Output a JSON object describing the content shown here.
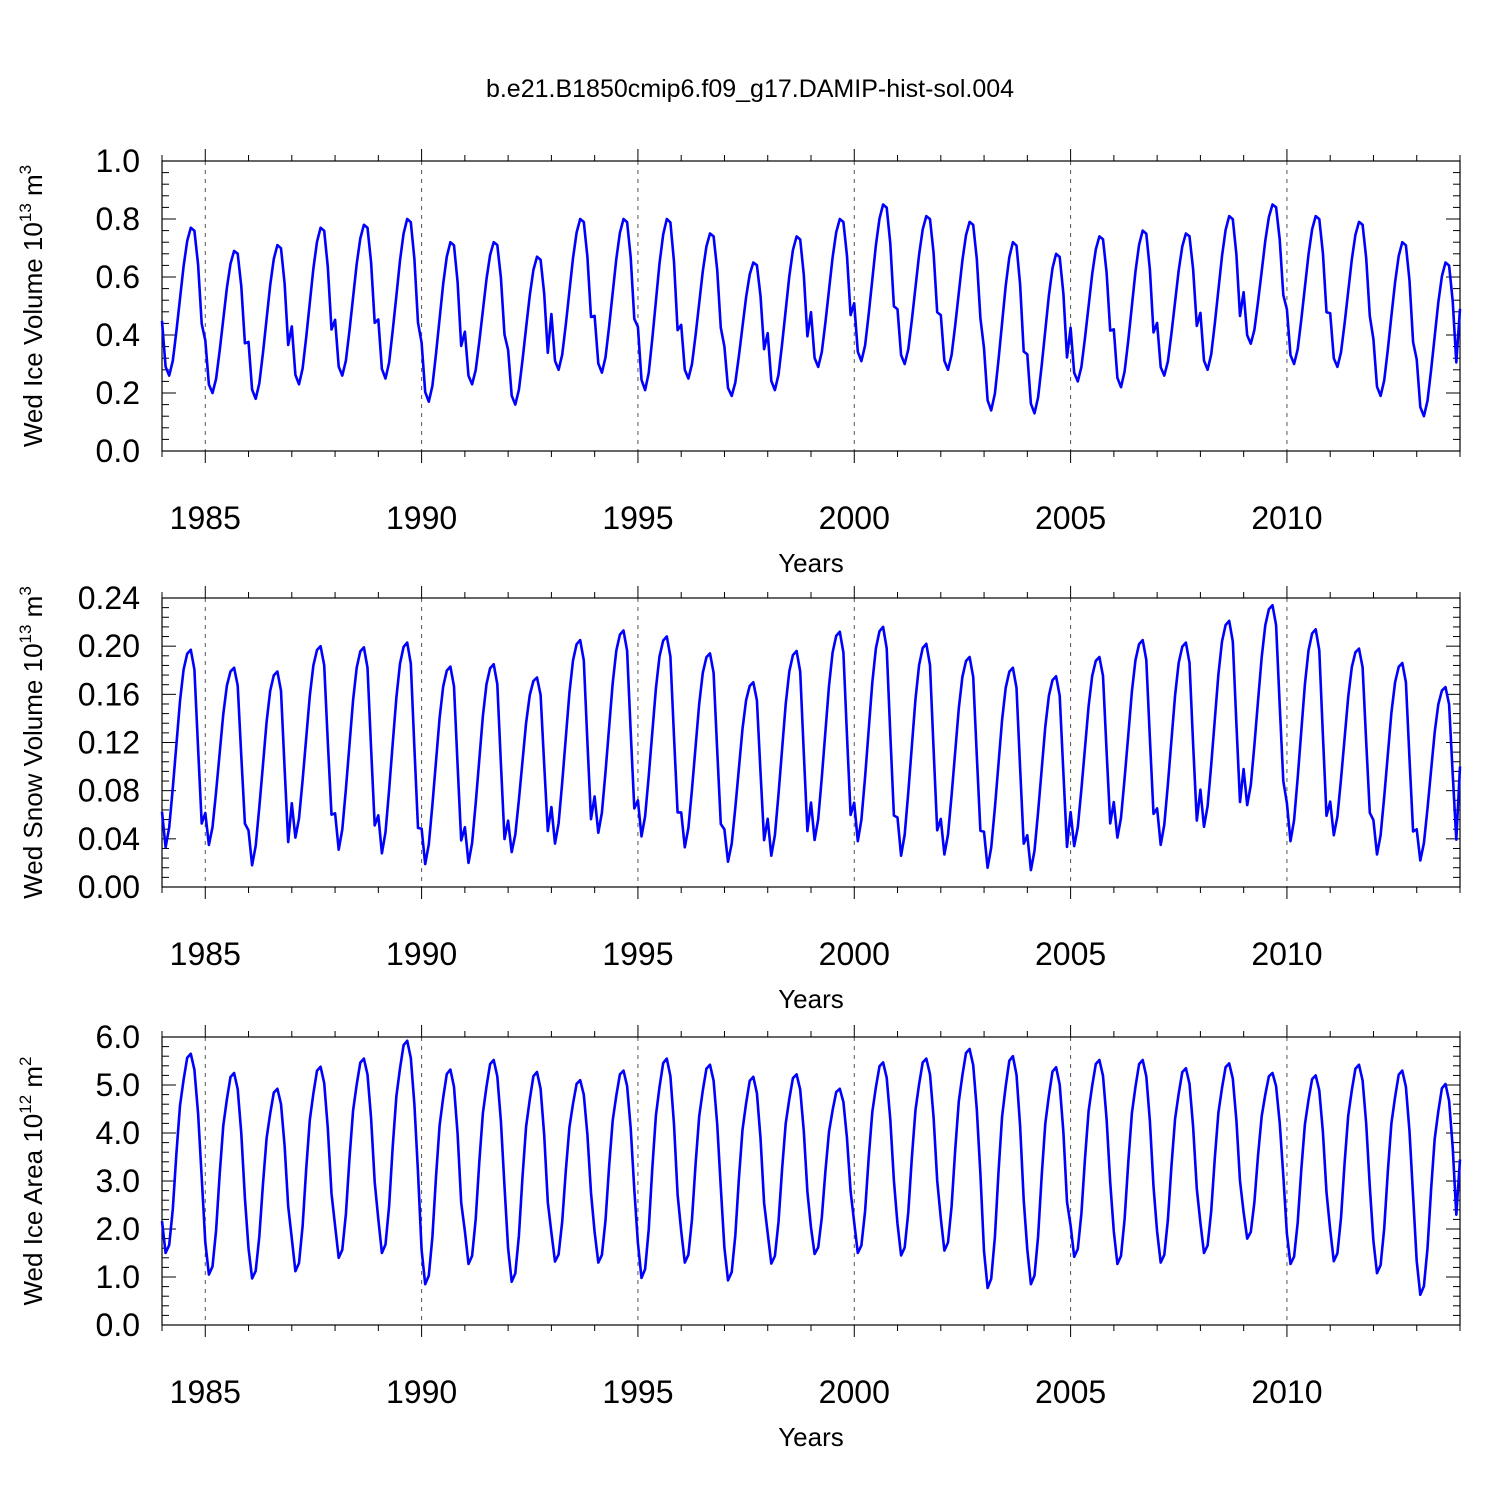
{
  "title": "b.e21.B1850cmip6.f09_g17.DAMIP-hist-sol.004",
  "line_color": "#0000ff",
  "chart_data": [
    {
      "type": "line",
      "title": "b.e21.B1850cmip6.f09_g17.DAMIP-hist-sol.004",
      "xlabel": "Years",
      "ylabel_parts": {
        "prefix": "Wed Ice Volume 10",
        "exp": "13",
        "unit": " m",
        "unit_exp": "3"
      },
      "xlim": [
        1984.0,
        2014.0
      ],
      "ylim": [
        0.0,
        1.0
      ],
      "xticks": [
        1985,
        1990,
        1995,
        2000,
        2005,
        2010
      ],
      "yticks": [
        "0.0",
        "0.2",
        "0.4",
        "0.6",
        "0.8",
        "1.0"
      ],
      "series": [
        {
          "name": "Wed Ice Volume",
          "x_start": 1984.0,
          "x_step": 0.08333,
          "annual_min": [
            0.26,
            0.2,
            0.18,
            0.23,
            0.26,
            0.25,
            0.17,
            0.23,
            0.16,
            0.28,
            0.27,
            0.21,
            0.25,
            0.19,
            0.21,
            0.29,
            0.31,
            0.3,
            0.28,
            0.14,
            0.13,
            0.24,
            0.22,
            0.26,
            0.28,
            0.37,
            0.3,
            0.29,
            0.19,
            0.12
          ],
          "annual_max": [
            0.77,
            0.69,
            0.71,
            0.77,
            0.78,
            0.8,
            0.72,
            0.72,
            0.67,
            0.8,
            0.8,
            0.8,
            0.75,
            0.65,
            0.74,
            0.8,
            0.85,
            0.81,
            0.79,
            0.72,
            0.68,
            0.74,
            0.76,
            0.75,
            0.81,
            0.85,
            0.81,
            0.79,
            0.72,
            0.65
          ],
          "shape": [
            0.37,
            0.06,
            0.0,
            0.1,
            0.3,
            0.52,
            0.74,
            0.91,
            1.0,
            0.98,
            0.75,
            0.35
          ],
          "end_value": 0.49
        }
      ]
    },
    {
      "type": "line",
      "title": "",
      "xlabel": "Years",
      "ylabel_parts": {
        "prefix": "Wed Snow Volume 10",
        "exp": "13",
        "unit": " m",
        "unit_exp": "3"
      },
      "xlim": [
        1984.0,
        2014.0
      ],
      "ylim": [
        0.0,
        0.24
      ],
      "xticks": [
        1985,
        1990,
        1995,
        2000,
        2005,
        2010
      ],
      "yticks": [
        "0.00",
        "0.04",
        "0.08",
        "0.12",
        "0.16",
        "0.20",
        "0.24"
      ],
      "series": [
        {
          "name": "Wed Snow Volume",
          "x_start": 1984.0,
          "x_step": 0.08333,
          "annual_min": [
            0.033,
            0.035,
            0.018,
            0.041,
            0.031,
            0.028,
            0.019,
            0.02,
            0.029,
            0.036,
            0.045,
            0.042,
            0.033,
            0.021,
            0.026,
            0.039,
            0.038,
            0.026,
            0.027,
            0.016,
            0.014,
            0.034,
            0.041,
            0.035,
            0.05,
            0.068,
            0.038,
            0.043,
            0.027,
            0.022
          ],
          "annual_max": [
            0.197,
            0.182,
            0.179,
            0.2,
            0.199,
            0.203,
            0.183,
            0.185,
            0.174,
            0.205,
            0.213,
            0.208,
            0.194,
            0.17,
            0.196,
            0.212,
            0.216,
            0.202,
            0.191,
            0.182,
            0.175,
            0.191,
            0.205,
            0.203,
            0.221,
            0.234,
            0.214,
            0.198,
            0.186,
            0.166
          ],
          "shape": [
            0.18,
            0.0,
            0.1,
            0.3,
            0.52,
            0.74,
            0.9,
            0.98,
            1.0,
            0.9,
            0.5,
            0.12
          ],
          "end_value": 0.1
        }
      ]
    },
    {
      "type": "line",
      "title": "",
      "xlabel": "Years",
      "ylabel_parts": {
        "prefix": "Wed Ice Area 10",
        "exp": "12",
        "unit": " m",
        "unit_exp": "2"
      },
      "xlim": [
        1984.0,
        2014.0
      ],
      "ylim": [
        0.0,
        6.0
      ],
      "xticks": [
        1985,
        1990,
        1995,
        2000,
        2005,
        2010
      ],
      "yticks": [
        "0.0",
        "1.0",
        "2.0",
        "3.0",
        "4.0",
        "5.0",
        "6.0"
      ],
      "series": [
        {
          "name": "Wed Ice Area",
          "x_start": 1984.0,
          "x_step": 0.08333,
          "annual_min": [
            1.5,
            1.05,
            0.97,
            1.12,
            1.4,
            1.5,
            0.85,
            1.27,
            0.9,
            1.32,
            1.3,
            0.98,
            1.3,
            0.93,
            1.28,
            1.48,
            1.5,
            1.45,
            1.55,
            0.77,
            0.85,
            1.42,
            1.27,
            1.3,
            1.5,
            1.8,
            1.27,
            1.33,
            1.08,
            0.63
          ],
          "annual_max": [
            5.65,
            5.25,
            4.92,
            5.38,
            5.55,
            5.92,
            5.32,
            5.52,
            5.27,
            5.1,
            5.3,
            5.55,
            5.42,
            5.17,
            5.22,
            4.92,
            5.47,
            5.55,
            5.75,
            5.6,
            5.37,
            5.52,
            5.52,
            5.35,
            5.45,
            5.25,
            5.2,
            5.42,
            5.3,
            5.02
          ],
          "shape": [
            0.16,
            0.0,
            0.04,
            0.22,
            0.5,
            0.74,
            0.87,
            0.98,
            1.0,
            0.92,
            0.7,
            0.38
          ],
          "end_value": 3.45
        }
      ]
    }
  ]
}
